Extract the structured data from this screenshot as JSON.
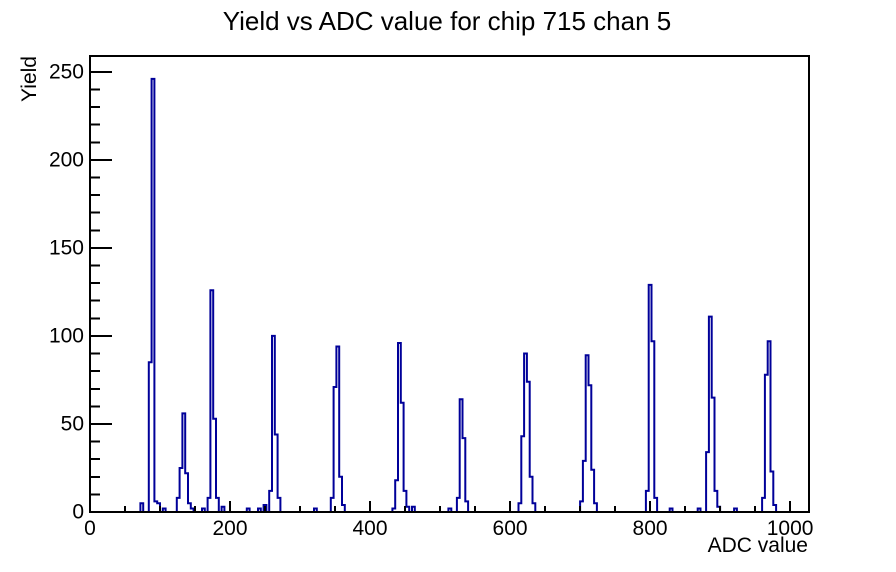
{
  "chart_data": {
    "type": "bar",
    "render_style": "root-step-histogram",
    "title": "Yield vs ADC value for chip 715 chan 5",
    "xlabel": "ADC value",
    "ylabel": "Yield",
    "xlim": [
      0,
      1027
    ],
    "ylim": [
      0,
      259
    ],
    "x_major_ticks": [
      0,
      200,
      400,
      600,
      800,
      1000
    ],
    "x_minor_tick_step": 50,
    "y_major_ticks": [
      0,
      50,
      100,
      150,
      200,
      250
    ],
    "y_minor_tick_step": 10,
    "grid": false,
    "legend": false,
    "line_color": "#000099",
    "axis_color": "#000000",
    "background_color": "#ffffff",
    "bin_width": 4,
    "peaks": [
      {
        "adc": 90,
        "yield": 246
      },
      {
        "adc": 134,
        "yield": 56
      },
      {
        "adc": 174,
        "yield": 126
      },
      {
        "adc": 262,
        "yield": 100
      },
      {
        "adc": 354,
        "yield": 94
      },
      {
        "adc": 442,
        "yield": 96
      },
      {
        "adc": 530,
        "yield": 64
      },
      {
        "adc": 622,
        "yield": 90
      },
      {
        "adc": 710,
        "yield": 89
      },
      {
        "adc": 800,
        "yield": 129
      },
      {
        "adc": 886,
        "yield": 111
      },
      {
        "adc": 970,
        "yield": 97
      }
    ],
    "bins": [
      [
        72,
        5
      ],
      [
        84,
        85
      ],
      [
        88,
        246
      ],
      [
        92,
        6
      ],
      [
        96,
        5
      ],
      [
        104,
        2
      ],
      [
        124,
        8
      ],
      [
        128,
        25
      ],
      [
        132,
        56
      ],
      [
        136,
        22
      ],
      [
        140,
        5
      ],
      [
        144,
        2
      ],
      [
        160,
        2
      ],
      [
        168,
        8
      ],
      [
        172,
        126
      ],
      [
        176,
        53
      ],
      [
        180,
        8
      ],
      [
        188,
        3
      ],
      [
        224,
        2
      ],
      [
        240,
        2
      ],
      [
        248,
        4
      ],
      [
        256,
        12
      ],
      [
        260,
        100
      ],
      [
        264,
        44
      ],
      [
        268,
        8
      ],
      [
        320,
        2
      ],
      [
        344,
        8
      ],
      [
        348,
        71
      ],
      [
        352,
        94
      ],
      [
        356,
        20
      ],
      [
        360,
        4
      ],
      [
        432,
        2
      ],
      [
        436,
        18
      ],
      [
        440,
        96
      ],
      [
        444,
        62
      ],
      [
        448,
        12
      ],
      [
        452,
        3
      ],
      [
        460,
        3
      ],
      [
        512,
        2
      ],
      [
        524,
        8
      ],
      [
        528,
        64
      ],
      [
        532,
        42
      ],
      [
        536,
        6
      ],
      [
        612,
        5
      ],
      [
        616,
        43
      ],
      [
        620,
        90
      ],
      [
        624,
        74
      ],
      [
        628,
        20
      ],
      [
        632,
        5
      ],
      [
        700,
        6
      ],
      [
        704,
        29
      ],
      [
        708,
        89
      ],
      [
        712,
        72
      ],
      [
        716,
        24
      ],
      [
        720,
        5
      ],
      [
        794,
        12
      ],
      [
        798,
        129
      ],
      [
        802,
        97
      ],
      [
        806,
        8
      ],
      [
        828,
        2
      ],
      [
        868,
        2
      ],
      [
        880,
        34
      ],
      [
        884,
        111
      ],
      [
        888,
        65
      ],
      [
        892,
        12
      ],
      [
        896,
        3
      ],
      [
        920,
        2
      ],
      [
        960,
        8
      ],
      [
        964,
        78
      ],
      [
        968,
        97
      ],
      [
        972,
        23
      ],
      [
        976,
        4
      ]
    ]
  }
}
